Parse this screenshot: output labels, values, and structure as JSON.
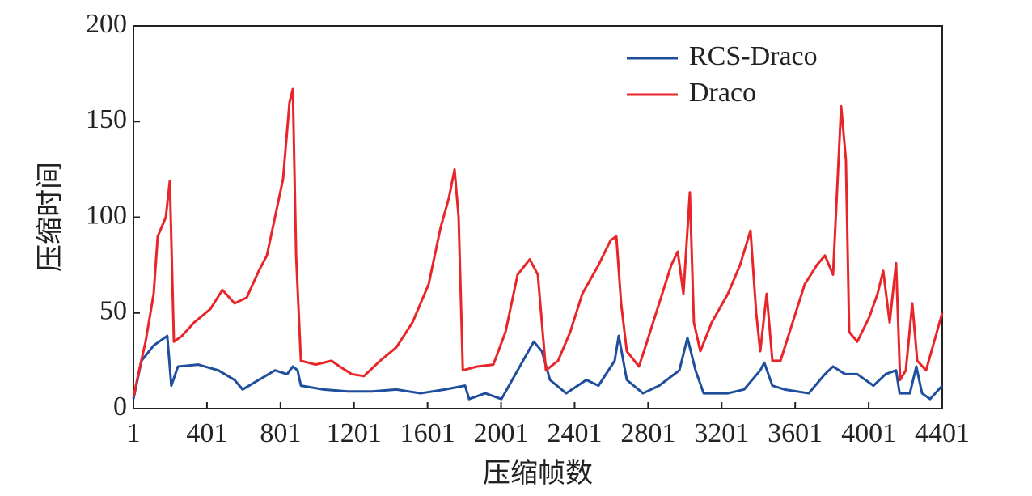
{
  "chart_data": {
    "type": "line",
    "xlabel": "压缩帧数",
    "ylabel": "压缩时间",
    "xlim": [
      1,
      4401
    ],
    "xticks": [
      1,
      401,
      801,
      1201,
      1601,
      2001,
      2401,
      2801,
      3201,
      3601,
      4001,
      4401
    ],
    "ylim": [
      0,
      200
    ],
    "yticks": [
      0,
      50,
      100,
      150,
      200
    ],
    "legend": "upper right",
    "series": [
      {
        "name": "RCS-Draco",
        "color": "#1f4e9c",
        "x": [
          1,
          45,
          111,
          185,
          207,
          243,
          353,
          463,
          551,
          595,
          683,
          771,
          837,
          868,
          894,
          912,
          1035,
          1167,
          1299,
          1431,
          1563,
          1695,
          1805,
          1827,
          1915,
          2003,
          2091,
          2179,
          2223,
          2267,
          2355,
          2465,
          2531,
          2619,
          2641,
          2685,
          2773,
          2861,
          2971,
          3015,
          3059,
          3103,
          3235,
          3323,
          3411,
          3433,
          3477,
          3543,
          3675,
          3763,
          3807,
          3873,
          3939,
          4027,
          4093,
          4150,
          4169,
          4225,
          4260,
          4291,
          4335,
          4401
        ],
        "values": [
          5,
          25,
          33,
          38,
          12,
          22,
          23,
          20,
          15,
          10,
          15,
          20,
          18,
          22,
          20,
          12,
          10,
          9,
          9,
          10,
          8,
          10,
          12,
          5,
          8,
          5,
          20,
          35,
          30,
          15,
          8,
          15,
          12,
          25,
          38,
          15,
          8,
          12,
          20,
          37,
          20,
          8,
          8,
          10,
          20,
          24,
          12,
          10,
          8,
          18,
          22,
          18,
          18,
          12,
          18,
          20,
          8,
          8,
          22,
          8,
          5,
          12
        ]
      },
      {
        "name": "Draco",
        "color": "#e8262a",
        "x": [
          1,
          32,
          67,
          111,
          133,
          177,
          199,
          221,
          265,
          331,
          419,
          485,
          551,
          617,
          683,
          727,
          771,
          815,
          850,
          868,
          886,
          912,
          991,
          1079,
          1123,
          1189,
          1255,
          1343,
          1431,
          1519,
          1607,
          1673,
          1717,
          1748,
          1770,
          1793,
          1871,
          1959,
          2025,
          2091,
          2157,
          2201,
          2245,
          2311,
          2377,
          2443,
          2531,
          2597,
          2628,
          2654,
          2685,
          2751,
          2795,
          2861,
          2927,
          2962,
          2993,
          3028,
          3050,
          3085,
          3147,
          3235,
          3301,
          3358,
          3389,
          3411,
          3446,
          3477,
          3521,
          3587,
          3653,
          3719,
          3763,
          3807,
          3851,
          3877,
          3895,
          3939,
          4005,
          4049,
          4080,
          4115,
          4150,
          4172,
          4203,
          4238,
          4265,
          4313,
          4357,
          4401
        ],
        "values": [
          6,
          20,
          35,
          60,
          90,
          100,
          119,
          35,
          38,
          45,
          52,
          62,
          55,
          58,
          72,
          80,
          100,
          120,
          160,
          167,
          80,
          25,
          23,
          25,
          22,
          18,
          17,
          25,
          32,
          45,
          65,
          95,
          110,
          125,
          100,
          20,
          22,
          23,
          40,
          70,
          78,
          70,
          20,
          25,
          40,
          60,
          75,
          88,
          90,
          55,
          30,
          22,
          35,
          55,
          75,
          82,
          60,
          113,
          45,
          30,
          45,
          60,
          75,
          93,
          50,
          30,
          60,
          25,
          25,
          45,
          65,
          75,
          80,
          70,
          158,
          130,
          40,
          35,
          48,
          60,
          72,
          45,
          76,
          15,
          20,
          55,
          25,
          20,
          35,
          50
        ]
      }
    ]
  }
}
